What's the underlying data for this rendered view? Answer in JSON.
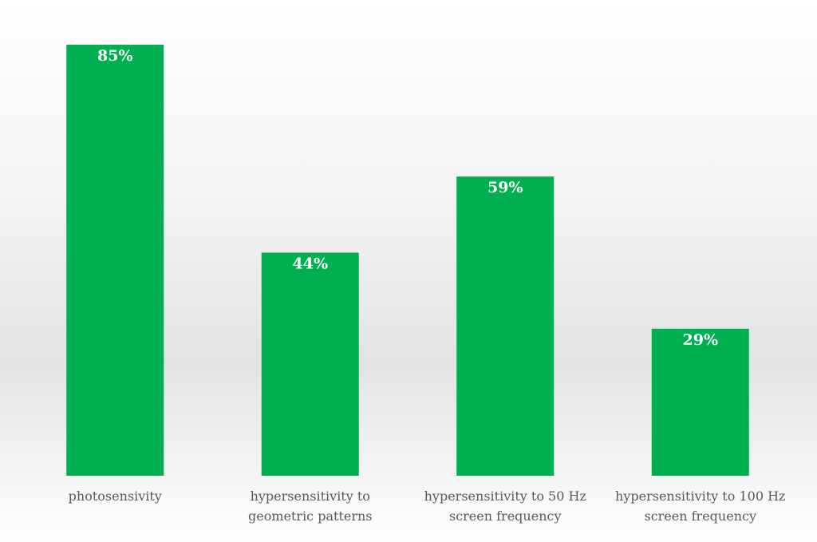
{
  "chart_data": {
    "type": "bar",
    "categories": [
      [
        "photosensivity"
      ],
      [
        "hypersensitivity to",
        "geometric patterns"
      ],
      [
        "hypersensitivity to 50 Hz",
        "screen frequency"
      ],
      [
        "hypersensitivity to 100 Hz",
        "screen frequency"
      ]
    ],
    "values": [
      85,
      44,
      59,
      29
    ],
    "value_labels": [
      "85%",
      "44%",
      "59%",
      "29%"
    ],
    "ylim": [
      0,
      100
    ],
    "bar_color": "#00b050",
    "value_label_color": "#ffffff",
    "category_label_color": "#595959",
    "grid": false,
    "legend": "none"
  }
}
